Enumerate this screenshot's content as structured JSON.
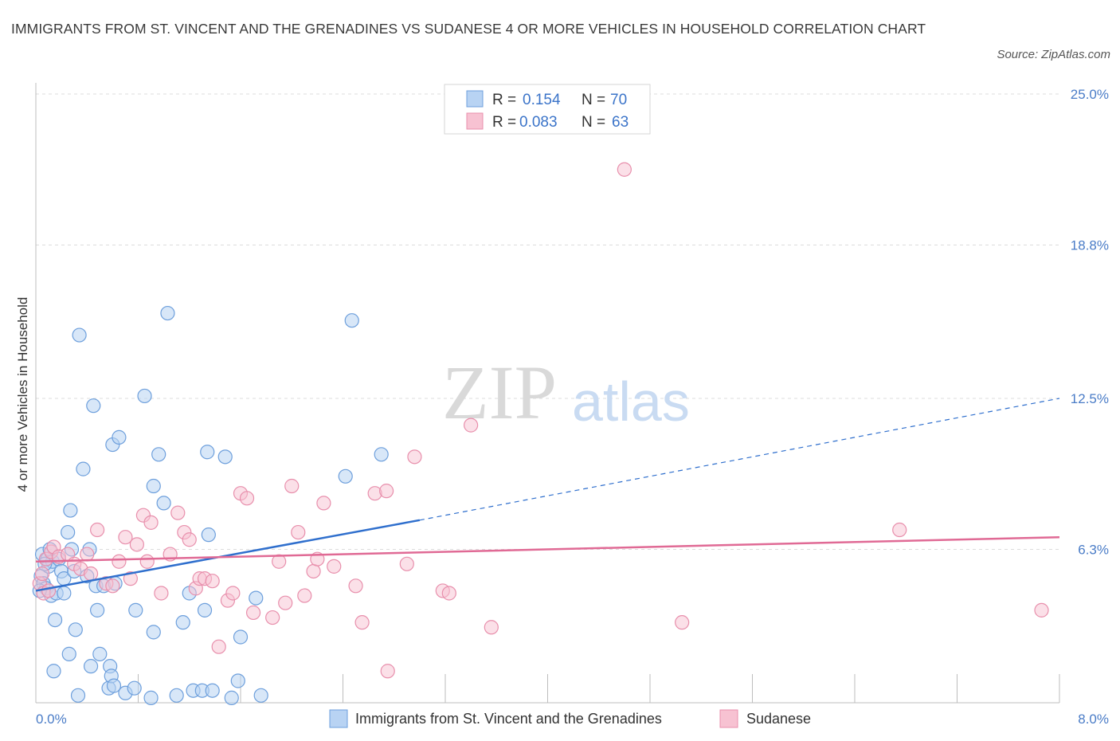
{
  "title": "IMMIGRANTS FROM ST. VINCENT AND THE GRENADINES VS SUDANESE 4 OR MORE VEHICLES IN HOUSEHOLD CORRELATION CHART",
  "source": "Source: ZipAtlas.com",
  "watermark": {
    "zip": "ZIP",
    "atlas": "atlas"
  },
  "chart_data": {
    "type": "scatter",
    "ylabel": "4 or more Vehicles in Household",
    "xlim": [
      0,
      8.0
    ],
    "ylim": [
      0,
      25.0
    ],
    "x_tick_labels": [
      {
        "value": 0,
        "label": "0.0%"
      },
      {
        "value": 8.0,
        "label": "8.0%"
      }
    ],
    "y_tick_labels": [
      {
        "value": 6.3,
        "label": "6.3%"
      },
      {
        "value": 12.5,
        "label": "12.5%"
      },
      {
        "value": 18.8,
        "label": "18.8%"
      },
      {
        "value": 25.0,
        "label": "25.0%"
      }
    ],
    "grid": true,
    "legend_position": "top-center",
    "colors": {
      "blue_fill": "#b8d3f3",
      "blue_stroke": "#6d9fdc",
      "blue_line": "#2f6fcd",
      "pink_fill": "#f7c2d2",
      "pink_stroke": "#e88fac",
      "pink_line": "#e06a95",
      "tick_label": "#4a7cc7"
    },
    "legend": [
      {
        "r_label": "R = ",
        "r": "0.154",
        "n_label": "N = ",
        "n": "70"
      },
      {
        "r_label": "R = ",
        "r": "0.083",
        "n_label": "N = ",
        "n": "63"
      }
    ],
    "series": [
      {
        "name": "Immigrants from St. Vincent and the Grenadines",
        "points": [
          [
            0.04,
            5.2
          ],
          [
            0.05,
            6.1
          ],
          [
            0.06,
            4.9
          ],
          [
            0.08,
            4.7
          ],
          [
            0.09,
            5.9
          ],
          [
            0.1,
            5.6
          ],
          [
            0.11,
            6.3
          ],
          [
            0.12,
            4.4
          ],
          [
            0.13,
            5.8
          ],
          [
            0.14,
            1.3
          ],
          [
            0.15,
            3.4
          ],
          [
            0.16,
            4.5
          ],
          [
            0.18,
            5.9
          ],
          [
            0.2,
            5.4
          ],
          [
            0.22,
            4.5
          ],
          [
            0.22,
            5.1
          ],
          [
            0.25,
            7.0
          ],
          [
            0.26,
            2.0
          ],
          [
            0.27,
            7.9
          ],
          [
            0.28,
            6.3
          ],
          [
            0.3,
            5.4
          ],
          [
            0.31,
            3.0
          ],
          [
            0.33,
            0.3
          ],
          [
            0.34,
            15.1
          ],
          [
            0.37,
            9.6
          ],
          [
            0.4,
            5.2
          ],
          [
            0.42,
            6.3
          ],
          [
            0.43,
            1.5
          ],
          [
            0.45,
            12.2
          ],
          [
            0.47,
            4.8
          ],
          [
            0.48,
            3.8
          ],
          [
            0.5,
            2.0
          ],
          [
            0.53,
            4.8
          ],
          [
            0.57,
            0.6
          ],
          [
            0.58,
            1.5
          ],
          [
            0.59,
            1.1
          ],
          [
            0.6,
            10.6
          ],
          [
            0.61,
            0.7
          ],
          [
            0.62,
            4.9
          ],
          [
            0.65,
            10.9
          ],
          [
            0.7,
            0.4
          ],
          [
            0.77,
            0.6
          ],
          [
            0.78,
            3.8
          ],
          [
            0.85,
            12.6
          ],
          [
            0.9,
            0.2
          ],
          [
            0.92,
            2.9
          ],
          [
            0.92,
            8.9
          ],
          [
            0.96,
            10.2
          ],
          [
            1.0,
            8.2
          ],
          [
            1.03,
            16.0
          ],
          [
            1.15,
            3.3
          ],
          [
            1.2,
            4.5
          ],
          [
            1.23,
            0.5
          ],
          [
            1.3,
            0.5
          ],
          [
            1.32,
            3.8
          ],
          [
            1.34,
            10.3
          ],
          [
            1.35,
            6.9
          ],
          [
            1.38,
            0.5
          ],
          [
            1.48,
            10.1
          ],
          [
            1.53,
            0.2
          ],
          [
            1.58,
            0.9
          ],
          [
            1.6,
            2.7
          ],
          [
            1.72,
            4.3
          ],
          [
            1.76,
            0.3
          ],
          [
            2.42,
            9.3
          ],
          [
            2.47,
            15.7
          ],
          [
            2.7,
            10.2
          ],
          [
            0.03,
            4.6
          ],
          [
            0.07,
            5.7
          ],
          [
            1.1,
            0.3
          ]
        ]
      },
      {
        "name": "Sudanese",
        "points": [
          [
            0.03,
            4.9
          ],
          [
            0.05,
            5.3
          ],
          [
            0.06,
            4.5
          ],
          [
            0.08,
            5.9
          ],
          [
            0.1,
            4.6
          ],
          [
            0.12,
            6.2
          ],
          [
            0.14,
            6.4
          ],
          [
            0.18,
            6.0
          ],
          [
            0.25,
            6.1
          ],
          [
            0.3,
            5.7
          ],
          [
            0.35,
            5.5
          ],
          [
            0.4,
            6.1
          ],
          [
            0.43,
            5.3
          ],
          [
            0.48,
            7.1
          ],
          [
            0.55,
            4.9
          ],
          [
            0.6,
            4.8
          ],
          [
            0.65,
            5.8
          ],
          [
            0.7,
            6.8
          ],
          [
            0.74,
            5.1
          ],
          [
            0.79,
            6.5
          ],
          [
            0.84,
            7.7
          ],
          [
            0.87,
            5.8
          ],
          [
            0.9,
            7.4
          ],
          [
            0.98,
            4.5
          ],
          [
            1.05,
            6.1
          ],
          [
            1.11,
            7.8
          ],
          [
            1.16,
            7.0
          ],
          [
            1.2,
            6.7
          ],
          [
            1.25,
            4.7
          ],
          [
            1.28,
            5.1
          ],
          [
            1.32,
            5.1
          ],
          [
            1.38,
            5.0
          ],
          [
            1.43,
            2.3
          ],
          [
            1.5,
            4.2
          ],
          [
            1.54,
            4.5
          ],
          [
            1.6,
            8.6
          ],
          [
            1.65,
            8.4
          ],
          [
            1.7,
            3.7
          ],
          [
            1.85,
            3.5
          ],
          [
            1.9,
            5.8
          ],
          [
            1.95,
            4.1
          ],
          [
            2.0,
            8.9
          ],
          [
            2.05,
            7.0
          ],
          [
            2.1,
            4.4
          ],
          [
            2.17,
            5.4
          ],
          [
            2.2,
            5.9
          ],
          [
            2.25,
            8.2
          ],
          [
            2.33,
            5.6
          ],
          [
            2.5,
            4.8
          ],
          [
            2.55,
            3.3
          ],
          [
            2.65,
            8.6
          ],
          [
            2.74,
            8.7
          ],
          [
            2.75,
            1.3
          ],
          [
            2.9,
            5.7
          ],
          [
            2.96,
            10.1
          ],
          [
            3.18,
            4.6
          ],
          [
            3.23,
            4.5
          ],
          [
            3.4,
            11.4
          ],
          [
            3.56,
            3.1
          ],
          [
            4.6,
            21.9
          ],
          [
            5.05,
            3.3
          ],
          [
            6.75,
            7.1
          ],
          [
            7.86,
            3.8
          ]
        ]
      }
    ],
    "trendlines": [
      {
        "series": "blue",
        "x": [
          0.0,
          3.0
        ],
        "y": [
          4.6,
          7.5
        ],
        "extended_x": [
          3.0,
          8.0
        ],
        "extended_y": [
          7.5,
          12.5
        ]
      },
      {
        "series": "pink",
        "x": [
          0.0,
          8.0
        ],
        "y": [
          5.8,
          6.8
        ]
      }
    ]
  }
}
